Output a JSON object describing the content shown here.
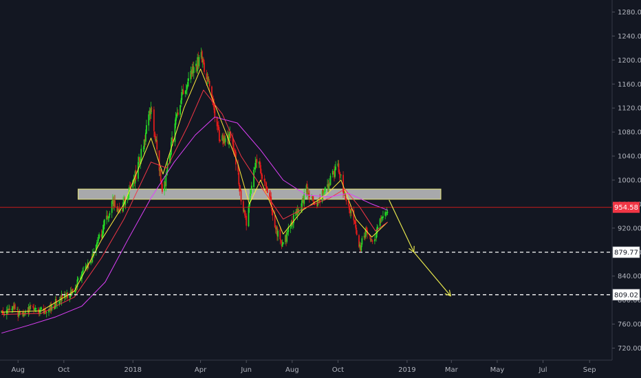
{
  "chart_data": {
    "type": "candlestick",
    "title": "",
    "xlabel": "",
    "ylabel": "",
    "ylim": [
      700,
      1300
    ],
    "x_range": [
      "2017-07-08",
      "2019-10-01"
    ],
    "grid": false,
    "y_ticks": [
      "720.00",
      "760.00",
      "800.00",
      "840.00",
      "880.00",
      "920.00",
      "960.00",
      "1000.00",
      "1040.00",
      "1080.00",
      "1120.00",
      "1160.00",
      "1200.00",
      "1240.00",
      "1280.00"
    ],
    "x_ticks": [
      {
        "label": "Aug",
        "date": "2017-08-01"
      },
      {
        "label": "Oct",
        "date": "2017-10-01"
      },
      {
        "label": "2018",
        "date": "2018-01-01"
      },
      {
        "label": "Apr",
        "date": "2018-04-01"
      },
      {
        "label": "Jun",
        "date": "2018-06-01"
      },
      {
        "label": "Aug",
        "date": "2018-08-01"
      },
      {
        "label": "Oct",
        "date": "2018-10-01"
      },
      {
        "label": "2019",
        "date": "2019-01-01"
      },
      {
        "label": "Mar",
        "date": "2019-03-01"
      },
      {
        "label": "May",
        "date": "2019-05-01"
      },
      {
        "label": "Jul",
        "date": "2019-07-01"
      },
      {
        "label": "Sep",
        "date": "2019-09-01"
      }
    ],
    "price_path": [
      [
        "2017-07-10",
        778
      ],
      [
        "2017-07-25",
        788
      ],
      [
        "2017-08-05",
        772
      ],
      [
        "2017-08-20",
        790
      ],
      [
        "2017-09-05",
        780
      ],
      [
        "2017-09-25",
        800
      ],
      [
        "2017-10-10",
        812
      ],
      [
        "2017-10-25",
        840
      ],
      [
        "2017-11-10",
        880
      ],
      [
        "2017-11-25",
        930
      ],
      [
        "2017-12-05",
        965
      ],
      [
        "2017-12-15",
        945
      ],
      [
        "2017-12-25",
        975
      ],
      [
        "2018-01-05",
        1010
      ],
      [
        "2018-01-15",
        1060
      ],
      [
        "2018-01-25",
        1120
      ],
      [
        "2018-01-30",
        1080
      ],
      [
        "2018-02-05",
        1020
      ],
      [
        "2018-02-10",
        975
      ],
      [
        "2018-02-20",
        1050
      ],
      [
        "2018-03-01",
        1110
      ],
      [
        "2018-03-10",
        1150
      ],
      [
        "2018-03-20",
        1180
      ],
      [
        "2018-03-28",
        1195
      ],
      [
        "2018-04-03",
        1205
      ],
      [
        "2018-04-10",
        1165
      ],
      [
        "2018-04-18",
        1120
      ],
      [
        "2018-04-25",
        1075
      ],
      [
        "2018-05-05",
        1060
      ],
      [
        "2018-05-12",
        1080
      ],
      [
        "2018-05-20",
        1015
      ],
      [
        "2018-05-26",
        960
      ],
      [
        "2018-06-01",
        925
      ],
      [
        "2018-06-08",
        990
      ],
      [
        "2018-06-15",
        1035
      ],
      [
        "2018-06-22",
        1010
      ],
      [
        "2018-07-01",
        975
      ],
      [
        "2018-07-10",
        920
      ],
      [
        "2018-07-20",
        890
      ],
      [
        "2018-07-30",
        925
      ],
      [
        "2018-08-10",
        950
      ],
      [
        "2018-08-20",
        985
      ],
      [
        "2018-09-01",
        960
      ],
      [
        "2018-09-10",
        975
      ],
      [
        "2018-09-20",
        1000
      ],
      [
        "2018-10-01",
        1020
      ],
      [
        "2018-10-08",
        985
      ],
      [
        "2018-10-15",
        955
      ],
      [
        "2018-10-22",
        935
      ],
      [
        "2018-10-30",
        885
      ],
      [
        "2018-11-08",
        918
      ],
      [
        "2018-11-18",
        900
      ],
      [
        "2018-11-28",
        935
      ],
      [
        "2018-12-06",
        955
      ]
    ],
    "series": [
      {
        "name": "",
        "color": "#ffeb3b",
        "values": [
          [
            "2017-07-10",
            780
          ],
          [
            "2017-09-01",
            782
          ],
          [
            "2017-10-15",
            815
          ],
          [
            "2017-11-20",
            900
          ],
          [
            "2017-12-20",
            960
          ],
          [
            "2018-01-25",
            1070
          ],
          [
            "2018-02-10",
            1010
          ],
          [
            "2018-03-10",
            1120
          ],
          [
            "2018-04-01",
            1185
          ],
          [
            "2018-04-25",
            1110
          ],
          [
            "2018-05-20",
            1030
          ],
          [
            "2018-06-05",
            960
          ],
          [
            "2018-06-20",
            1000
          ],
          [
            "2018-07-20",
            910
          ],
          [
            "2018-08-15",
            950
          ],
          [
            "2018-09-15",
            975
          ],
          [
            "2018-10-05",
            1000
          ],
          [
            "2018-10-25",
            935
          ],
          [
            "2018-11-15",
            905
          ],
          [
            "2018-12-06",
            930
          ]
        ]
      },
      {
        "name": "",
        "color": "#f23645",
        "values": [
          [
            "2017-07-10",
            776
          ],
          [
            "2017-09-01",
            778
          ],
          [
            "2017-10-15",
            805
          ],
          [
            "2017-11-20",
            870
          ],
          [
            "2017-12-20",
            935
          ],
          [
            "2018-01-25",
            1030
          ],
          [
            "2018-02-15",
            1020
          ],
          [
            "2018-03-15",
            1090
          ],
          [
            "2018-04-05",
            1150
          ],
          [
            "2018-04-30",
            1110
          ],
          [
            "2018-05-25",
            1040
          ],
          [
            "2018-06-20",
            990
          ],
          [
            "2018-07-20",
            935
          ],
          [
            "2018-08-20",
            955
          ],
          [
            "2018-09-20",
            970
          ],
          [
            "2018-10-10",
            985
          ],
          [
            "2018-10-30",
            955
          ],
          [
            "2018-11-20",
            915
          ],
          [
            "2018-12-06",
            930
          ]
        ]
      },
      {
        "name": "",
        "color": "#e040fb",
        "values": [
          [
            "2017-07-10",
            745
          ],
          [
            "2017-08-15",
            758
          ],
          [
            "2017-09-20",
            772
          ],
          [
            "2017-10-25",
            790
          ],
          [
            "2017-11-25",
            830
          ],
          [
            "2017-12-25",
            900
          ],
          [
            "2018-01-25",
            970
          ],
          [
            "2018-02-25",
            1030
          ],
          [
            "2018-03-25",
            1075
          ],
          [
            "2018-04-20",
            1105
          ],
          [
            "2018-05-20",
            1095
          ],
          [
            "2018-06-20",
            1050
          ],
          [
            "2018-07-20",
            1000
          ],
          [
            "2018-08-20",
            975
          ],
          [
            "2018-09-20",
            972
          ],
          [
            "2018-10-15",
            978
          ],
          [
            "2018-11-15",
            960
          ],
          [
            "2018-12-06",
            950
          ]
        ]
      }
    ],
    "annotations": {
      "zone": {
        "from": "2017-10-20",
        "to": "2019-02-15",
        "low": 968,
        "high": 985
      },
      "current_price": {
        "value": 954.58,
        "label": "954.58"
      },
      "levels": [
        {
          "value": 879.77,
          "label": "879.77"
        },
        {
          "value": 809.02,
          "label": "809.02"
        }
      ],
      "arrows": [
        {
          "from": [
            "2018-12-08",
            967
          ],
          "to": [
            "2019-01-10",
            880
          ]
        },
        {
          "from": [
            "2019-01-10",
            880
          ],
          "to": [
            "2019-02-28",
            807
          ]
        }
      ]
    },
    "colors": {
      "background": "#131722",
      "up": "#26d926",
      "down": "#e01b1b",
      "zone_fill": "#c9c9c9",
      "zone_border": "#e6e67a",
      "current_price_line": "#e01b1b",
      "price_tag": "#f23645",
      "level_line": "#ffffff",
      "arrow": "#e6e64d",
      "axis_text": "#b2b5be"
    }
  }
}
